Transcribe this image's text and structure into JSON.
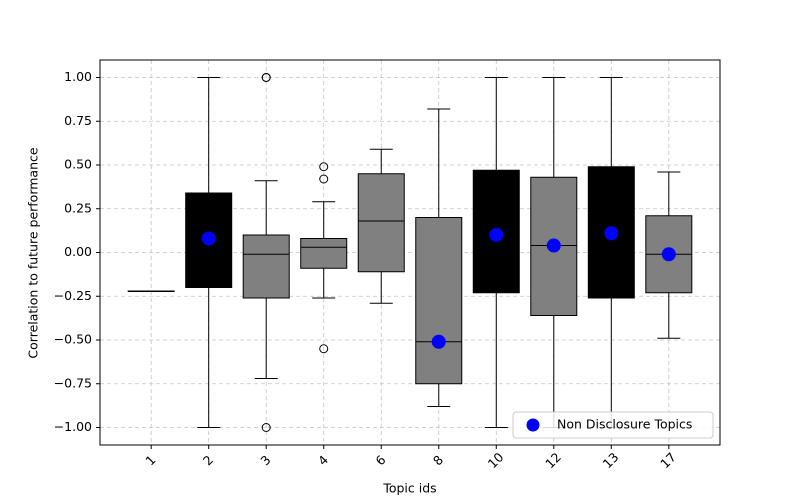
{
  "chart_data": {
    "type": "box",
    "xlabel": "Topic ids",
    "ylabel": "Correlation to future performance",
    "categories": [
      "1",
      "2",
      "3",
      "4",
      "6",
      "8",
      "10",
      "12",
      "13",
      "17"
    ],
    "boxes": [
      {
        "whislo": -0.22,
        "q1": -0.22,
        "med": -0.22,
        "q3": -0.22,
        "whishi": -0.22,
        "fliers": [],
        "color": "#808080"
      },
      {
        "whislo": -1.0,
        "q1": -0.2,
        "med": 0.08,
        "q3": 0.34,
        "whishi": 1.0,
        "fliers": [],
        "color": "#000000"
      },
      {
        "whislo": -0.72,
        "q1": -0.26,
        "med": -0.01,
        "q3": 0.1,
        "whishi": 0.41,
        "fliers": [
          1.0,
          1.0,
          -1.0
        ],
        "color": "#808080"
      },
      {
        "whislo": -0.26,
        "q1": -0.09,
        "med": 0.03,
        "q3": 0.08,
        "whishi": 0.29,
        "fliers": [
          0.49,
          0.42,
          -0.55
        ],
        "color": "#808080"
      },
      {
        "whislo": -0.29,
        "q1": -0.11,
        "med": 0.18,
        "q3": 0.45,
        "whishi": 0.59,
        "fliers": [],
        "color": "#808080"
      },
      {
        "whislo": -0.88,
        "q1": -0.75,
        "med": -0.51,
        "q3": 0.2,
        "whishi": 0.82,
        "fliers": [],
        "color": "#808080"
      },
      {
        "whislo": -1.0,
        "q1": -0.23,
        "med": 0.1,
        "q3": 0.47,
        "whishi": 1.0,
        "fliers": [],
        "color": "#000000"
      },
      {
        "whislo": -1.0,
        "q1": -0.36,
        "med": 0.04,
        "q3": 0.43,
        "whishi": 1.0,
        "fliers": [],
        "color": "#808080"
      },
      {
        "whislo": -1.0,
        "q1": -0.26,
        "med": 0.11,
        "q3": 0.49,
        "whishi": 1.0,
        "fliers": [],
        "color": "#000000"
      },
      {
        "whislo": -0.49,
        "q1": -0.23,
        "med": -0.01,
        "q3": 0.21,
        "whishi": 0.46,
        "fliers": [],
        "color": "#808080"
      }
    ],
    "series": [
      {
        "name": "Non Disclosure Topics",
        "color": "#0000ff",
        "values": [
          null,
          0.08,
          null,
          null,
          null,
          -0.51,
          0.1,
          0.04,
          0.11,
          -0.01
        ]
      }
    ],
    "ylim": [
      -1.1,
      1.1
    ],
    "yticks": [
      {
        "value": -1.0,
        "label": "−1.00"
      },
      {
        "value": -0.75,
        "label": "−0.75"
      },
      {
        "value": -0.5,
        "label": "−0.50"
      },
      {
        "value": -0.25,
        "label": "−0.25"
      },
      {
        "value": 0.0,
        "label": "0.00"
      },
      {
        "value": 0.25,
        "label": "0.25"
      },
      {
        "value": 0.5,
        "label": "0.50"
      },
      {
        "value": 0.75,
        "label": "0.75"
      },
      {
        "value": 1.0,
        "label": "1.00"
      }
    ],
    "grid": true,
    "legend": "lower right"
  }
}
